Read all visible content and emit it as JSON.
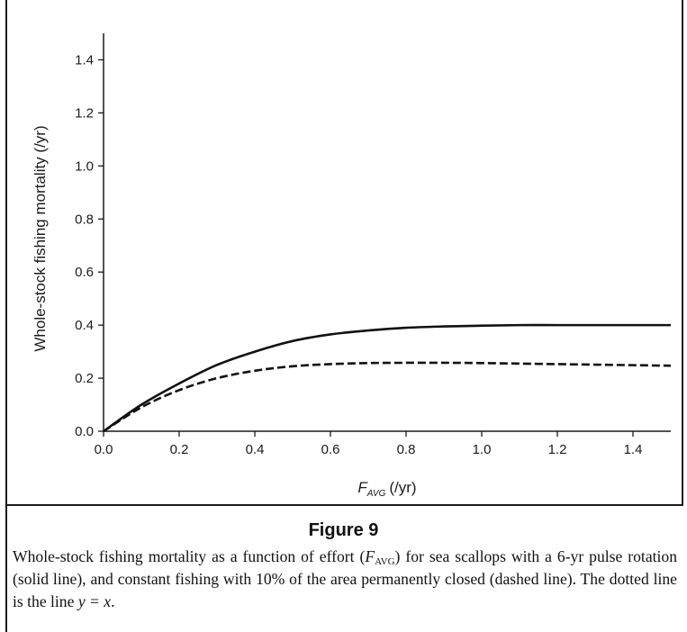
{
  "chart_data": {
    "type": "line",
    "xlabel": "F",
    "xlabel_sub": "AVG",
    "xlabel_unit": "(/yr)",
    "ylabel": "Whole-stock fishing mortality (/yr)",
    "xlim": [
      0,
      1.5
    ],
    "ylim": [
      0,
      1.5
    ],
    "xticks": [
      "0.0",
      "0.2",
      "0.4",
      "0.6",
      "0.8",
      "1.0",
      "1.2",
      "1.4"
    ],
    "yticks": [
      "0.0",
      "0.2",
      "0.4",
      "0.6",
      "0.8",
      "1.0",
      "1.2",
      "1.4"
    ],
    "grid": false,
    "series": [
      {
        "style": "solid",
        "x": [
          0,
          0.1,
          0.2,
          0.3,
          0.4,
          0.5,
          0.6,
          0.7,
          0.8,
          0.9,
          1.0,
          1.1,
          1.2,
          1.3,
          1.4,
          1.5
        ],
        "y": [
          0,
          0.1,
          0.18,
          0.25,
          0.3,
          0.34,
          0.365,
          0.38,
          0.39,
          0.395,
          0.398,
          0.4,
          0.4,
          0.4,
          0.4,
          0.4
        ]
      },
      {
        "style": "dashed",
        "x": [
          0,
          0.1,
          0.2,
          0.3,
          0.4,
          0.5,
          0.6,
          0.7,
          0.8,
          0.9,
          1.0,
          1.1,
          1.2,
          1.3,
          1.4,
          1.5
        ],
        "y": [
          0,
          0.09,
          0.155,
          0.2,
          0.228,
          0.245,
          0.253,
          0.257,
          0.258,
          0.258,
          0.257,
          0.255,
          0.253,
          0.251,
          0.249,
          0.247
        ]
      }
    ]
  },
  "caption": {
    "title": "Figure 9",
    "p1": "Whole-stock fishing mortality as a function of effort (",
    "sym1": "F",
    "sub1": "AVG",
    "p2": ") for sea scallops with a 6-yr pulse rotation (solid line), and constant fishing with 10% of the area permanently closed (dashed line). The dotted line is the line ",
    "eq": "y = x",
    "p3": "."
  }
}
